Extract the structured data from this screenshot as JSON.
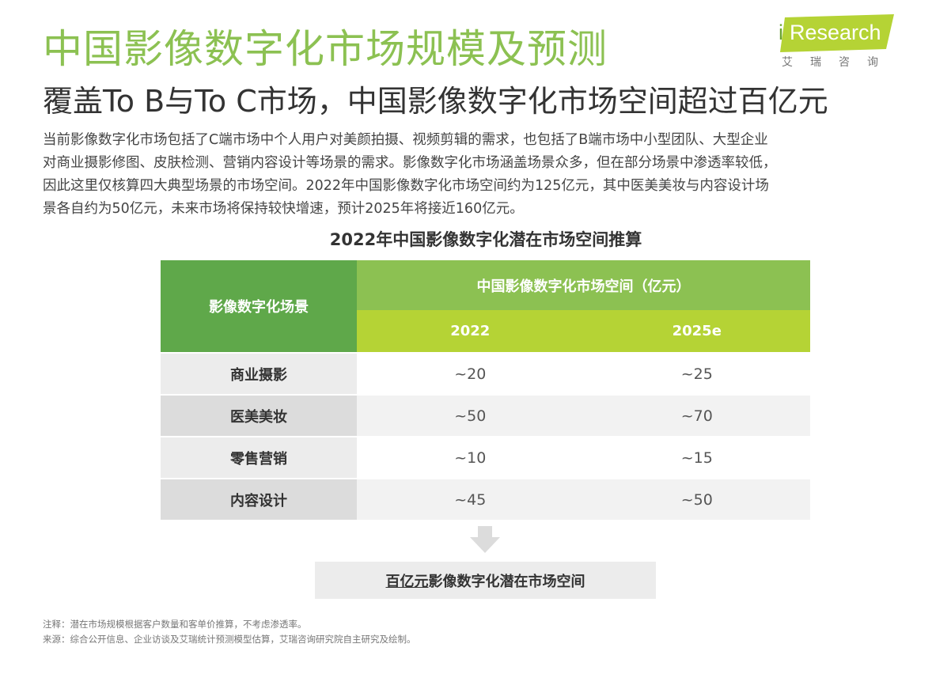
{
  "header": {
    "title": "中国影像数字化市场规模及预测",
    "subtitle": "覆盖To B与To C市场，中国影像数字化市场空间超过百亿元"
  },
  "logo": {
    "i": "i",
    "name": "Research",
    "sub": "艾瑞咨询",
    "brand_color": "#b5d335"
  },
  "intro_lines": [
    "当前影像数字化市场包括了C端市场中个人用户对美颜拍摄、视频剪辑的需求，也包括了B端市场中小型团队、大型企业",
    "对商业摄影修图、皮肤检测、营销内容设计等场景的需求。影像数字化市场涵盖场景众多，但在部分场景中渗透率较低，",
    "因此这里仅核算四大典型场景的市场空间。2022年中国影像数字化市场空间约为125亿元，其中医美美妆与内容设计场",
    "景各自约为50亿元，未来市场将保持较快增速，预计2025年将接近160亿元。"
  ],
  "table": {
    "title": "2022年中国影像数字化潜在市场空间推算",
    "header_left": "影像数字化场景",
    "header_top": "中国影像数字化市场空间（亿元）",
    "years": [
      "2022",
      "2025e"
    ],
    "rows": [
      {
        "label": "商业摄影",
        "v2022": "~20",
        "v2025": "~25"
      },
      {
        "label": "医美美妆",
        "v2022": "~50",
        "v2025": "~70"
      },
      {
        "label": "零售营销",
        "v2022": "~10",
        "v2025": "~15"
      },
      {
        "label": "内容设计",
        "v2022": "~45",
        "v2025": "~50"
      }
    ],
    "colors": {
      "header_left": "#5fa84a",
      "header_top": "#8cc152",
      "header_year": "#b5d335"
    }
  },
  "conclusion": {
    "emphasis": "百亿元",
    "rest": "影像数字化潜在市场空间"
  },
  "notes": [
    "注释：潜在市场规模根据客户数量和客单价推算，不考虑渗透率。",
    "来源：综合公开信息、企业访谈及艾瑞统计预测模型估算，艾瑞咨询研究院自主研究及绘制。"
  ]
}
